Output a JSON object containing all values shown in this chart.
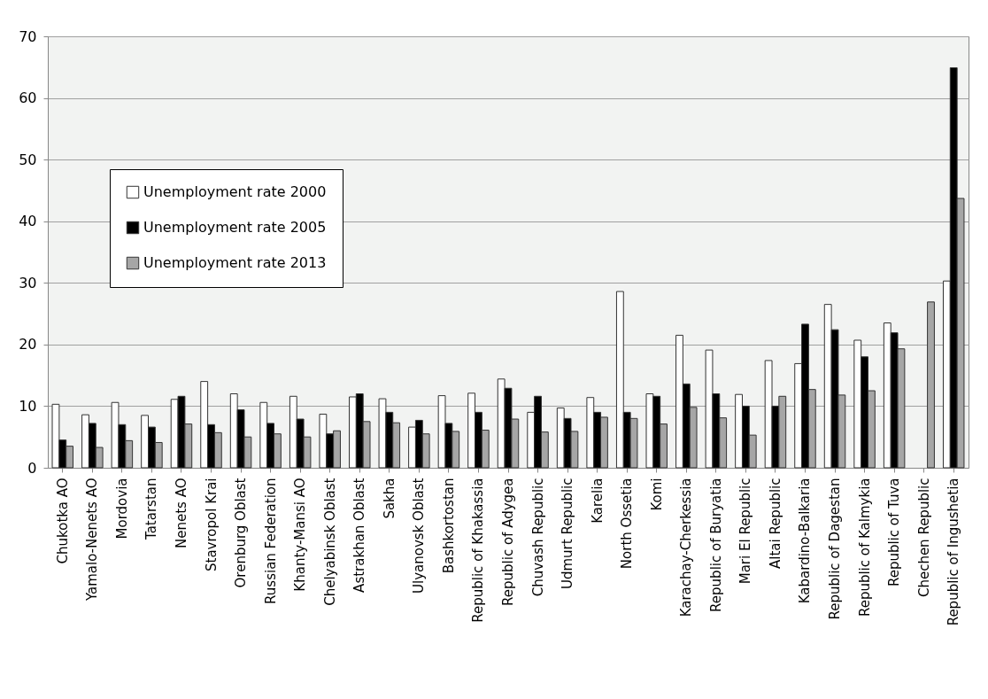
{
  "chart_data": {
    "type": "bar",
    "categories": [
      "Chukotka AO",
      "Yamalo-Nenets AO",
      "Mordovia",
      "Tatarstan",
      "Nenets AO",
      "Stavropol Krai",
      "Orenburg Oblast",
      "Russian Federation",
      "Khanty-Mansi AO",
      "Chelyabinsk Oblast",
      "Astrakhan Oblast",
      "Sakha",
      "Ulyanovsk Oblast",
      "Bashkortostan",
      "Republic of Khakassia",
      "Republic of Adygea",
      "Chuvash Republic",
      "Udmurt Republic",
      "Karelia",
      "North Ossetia",
      "Komi",
      "Karachay-Cherkessia",
      "Republic of Buryatia",
      "Mari El Republic",
      "Altai Republic",
      "Kabardino-Balkaria",
      "Republic of Dagestan",
      "Republic of Kalmykia",
      "Republic of Tuva",
      "Chechen Republic",
      "Republic of Ingushetia"
    ],
    "series": [
      {
        "name": "Unemployment rate 2000",
        "color": "#ffffff",
        "values": [
          10.3,
          8.6,
          10.6,
          8.5,
          11.1,
          14.0,
          12.0,
          10.6,
          11.6,
          8.7,
          11.5,
          11.2,
          6.6,
          11.7,
          12.1,
          14.4,
          9.0,
          9.7,
          11.4,
          28.6,
          12.0,
          21.5,
          19.1,
          11.9,
          17.4,
          16.9,
          26.5,
          20.7,
          23.5,
          null,
          30.3
        ]
      },
      {
        "name": "Unemployment rate 2005",
        "color": "#000000",
        "values": [
          4.5,
          7.2,
          7.0,
          6.6,
          11.6,
          7.0,
          9.4,
          7.2,
          7.9,
          5.5,
          12.0,
          9.0,
          7.7,
          7.2,
          9.0,
          12.9,
          11.6,
          8.0,
          9.0,
          9.0,
          11.6,
          13.6,
          12.0,
          10.0,
          10.0,
          23.3,
          22.4,
          18.0,
          21.9,
          null,
          64.9
        ]
      },
      {
        "name": "Unemployment rate 2013",
        "color": "#a6a6a6",
        "values": [
          3.5,
          3.3,
          4.4,
          4.1,
          7.1,
          5.7,
          5.0,
          5.5,
          5.0,
          6.0,
          7.5,
          7.3,
          5.5,
          5.9,
          6.1,
          7.9,
          5.8,
          5.9,
          8.2,
          8.0,
          7.1,
          9.8,
          8.1,
          5.3,
          11.6,
          12.7,
          11.8,
          12.5,
          19.3,
          26.9,
          43.7
        ]
      }
    ],
    "ylim": [
      0,
      70
    ],
    "yticks": [
      0,
      10,
      20,
      30,
      40,
      50,
      60,
      70
    ],
    "grid": "y",
    "legend": "top left"
  }
}
